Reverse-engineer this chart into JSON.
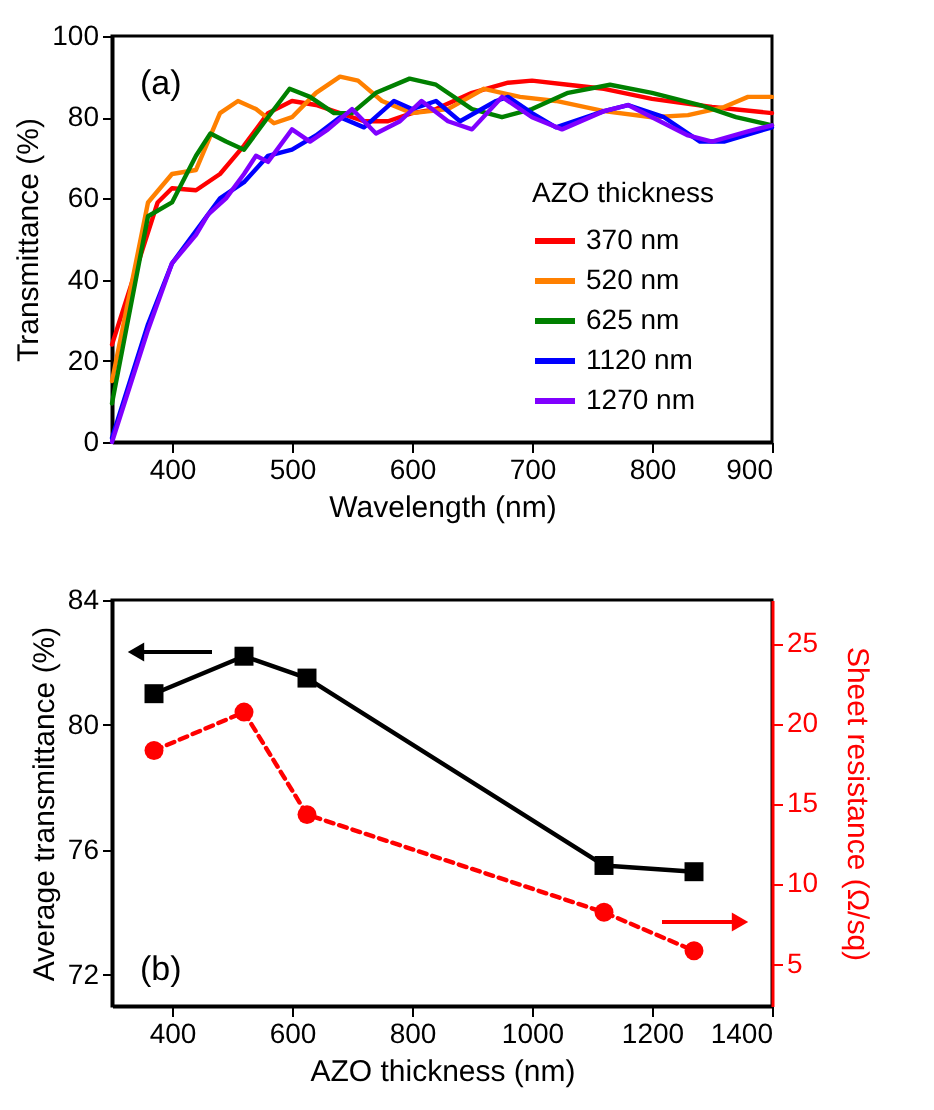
{
  "chart_data": [
    {
      "type": "line",
      "xlabel": "Wavelength (nm)",
      "ylabel": "Transmittance (%)",
      "xlim": [
        350,
        900
      ],
      "ylim": [
        0,
        100
      ],
      "xticks": [
        400,
        500,
        600,
        700,
        800,
        900
      ],
      "yticks": [
        0,
        20,
        40,
        60,
        80,
        100
      ],
      "grid": false,
      "legend": "right",
      "legend_title": "AZO thickness",
      "marker": "none",
      "line_style": "solid",
      "annotations": [
        "(a)"
      ],
      "series": [
        {
          "name": "370 nm",
          "color": "#ff0000",
          "x": [
            350,
            388,
            400,
            420,
            440,
            460,
            480,
            500,
            520,
            540,
            560,
            580,
            600,
            620,
            650,
            680,
            700,
            730,
            760,
            800,
            850,
            900
          ],
          "values": [
            24,
            59,
            62.5,
            62,
            66,
            73,
            81,
            84,
            83,
            81,
            79,
            79,
            81,
            82,
            86,
            88.5,
            89,
            88,
            87,
            84.5,
            82.5,
            81
          ]
        },
        {
          "name": "520 nm",
          "color": "#ff8000",
          "x": [
            350,
            380,
            400,
            420,
            440,
            455,
            470,
            485,
            500,
            520,
            540,
            555,
            575,
            600,
            630,
            660,
            690,
            720,
            760,
            800,
            830,
            860,
            880,
            900
          ],
          "values": [
            15,
            59,
            66,
            67,
            81,
            84,
            82,
            78.5,
            80,
            86,
            90,
            89,
            84,
            81,
            82,
            87,
            85,
            84,
            81.5,
            80,
            80.5,
            82.5,
            85,
            85
          ]
        },
        {
          "name": "625 nm",
          "color": "#008000",
          "x": [
            350,
            380,
            400,
            420,
            432,
            445,
            460,
            480,
            498,
            515,
            535,
            550,
            570,
            598,
            620,
            650,
            675,
            700,
            730,
            765,
            800,
            840,
            870,
            900
          ],
          "values": [
            9.5,
            55.6,
            59,
            70.5,
            76,
            74,
            72,
            80,
            87,
            85,
            81,
            81,
            86,
            89.5,
            88,
            82,
            80,
            82,
            86,
            88,
            86,
            83,
            80,
            78
          ]
        },
        {
          "name": "1120 nm",
          "color": "#0000ff",
          "x": [
            350,
            380,
            400,
            420,
            440,
            460,
            480,
            500,
            520,
            540,
            560,
            585,
            600,
            620,
            640,
            670,
            680,
            700,
            720,
            760,
            780,
            810,
            840,
            860,
            900
          ],
          "values": [
            1,
            29,
            44,
            52,
            60,
            64,
            70.5,
            72,
            75.5,
            80,
            77.5,
            84,
            82,
            84,
            79,
            84,
            85,
            81,
            77.5,
            81.5,
            83,
            80,
            74,
            74,
            77.5
          ]
        },
        {
          "name": "1270 nm",
          "color": "#8000ff",
          "x": [
            350,
            380,
            400,
            420,
            430,
            445,
            460,
            470,
            480,
            500,
            515,
            530,
            550,
            570,
            590,
            608,
            630,
            650,
            675,
            700,
            725,
            760,
            780,
            800,
            830,
            850,
            880,
            900
          ],
          "values": [
            0,
            27.6,
            44,
            51,
            56,
            60,
            66,
            70.5,
            69,
            77,
            74,
            77,
            82,
            76,
            79,
            84,
            79,
            77,
            85,
            80,
            77,
            81.5,
            83,
            80,
            75.5,
            74,
            76.5,
            78
          ]
        }
      ]
    },
    {
      "type": "line",
      "xlabel": "AZO thickness (nm)",
      "ylabel": "Average transmittance (%)",
      "y2label": "Sheet resistance (Ω/sq)",
      "xlim": [
        300,
        1400
      ],
      "ylim": [
        71,
        84
      ],
      "y2lim": [
        2.35,
        27.7
      ],
      "xticks": [
        400,
        600,
        800,
        1000,
        1200,
        1400
      ],
      "yticks": [
        72,
        76,
        80,
        84
      ],
      "y2ticks": [
        5,
        10,
        15,
        20,
        25
      ],
      "grid": false,
      "annotations": [
        "(b)"
      ],
      "x": [
        370,
        520,
        625,
        1120,
        1270
      ],
      "series": [
        {
          "color": "#000000",
          "marker": "square",
          "line_style": "solid",
          "values": [
            81.0,
            82.2,
            81.5,
            75.5,
            75.3
          ]
        },
        {
          "color": "#ff0000",
          "marker": "circle",
          "line_style": "dashed",
          "axis": "y2",
          "values": [
            18.3,
            20.7,
            14.3,
            8.2,
            5.8
          ]
        }
      ]
    }
  ]
}
